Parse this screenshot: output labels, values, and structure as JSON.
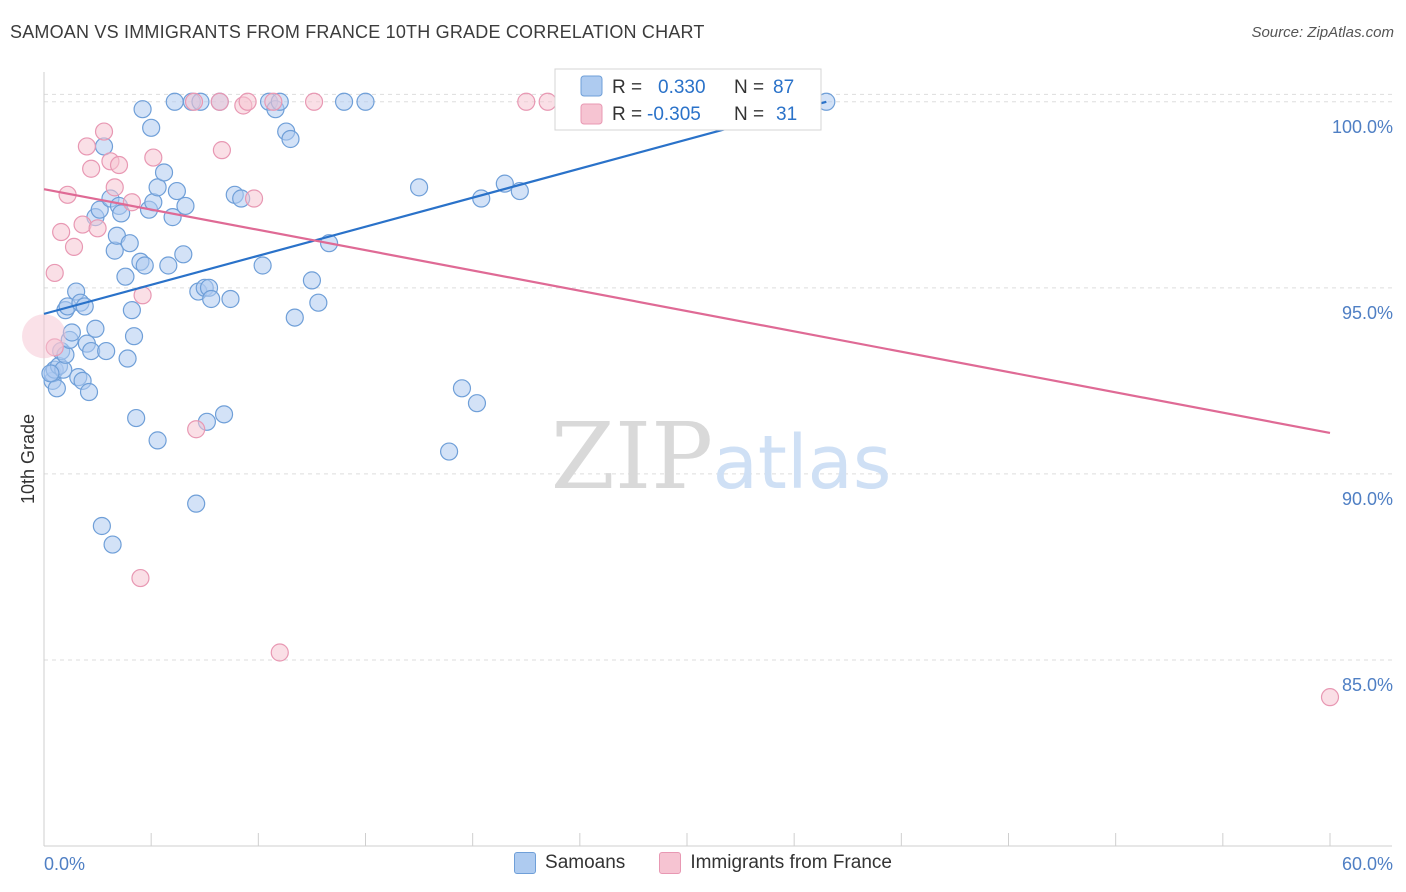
{
  "header": {
    "title": "SAMOAN VS IMMIGRANTS FROM FRANCE 10TH GRADE CORRELATION CHART",
    "source": "Source: ZipAtlas.com"
  },
  "watermark": {
    "zip": "ZIP",
    "atlas": "atlas"
  },
  "colors": {
    "blue_fill": "#aecbf0",
    "blue_stroke": "#6f9fd8",
    "blue_line": "#2a72c9",
    "pink_fill": "#f6c4d2",
    "pink_stroke": "#e898b3",
    "pink_line": "#df6a95",
    "axis_text": "#4f7fc4",
    "grid": "#dddddd"
  },
  "chart_data": {
    "type": "scatter",
    "title": "SAMOAN VS IMMIGRANTS FROM FRANCE 10TH GRADE CORRELATION CHART",
    "xlabel": "",
    "ylabel": "10th Grade",
    "xlim": [
      0,
      60
    ],
    "ylim": [
      80.0,
      100.8
    ],
    "x_tick_labels": [
      "0.0%",
      "60.0%"
    ],
    "y_ticks": [
      85,
      90,
      95,
      100
    ],
    "y_tick_labels": [
      "85.0%",
      "90.0%",
      "95.0%",
      "100.0%"
    ],
    "grid": true,
    "legend_stats": [
      {
        "series": "Samoans",
        "r_label": "R =",
        "r_value": "0.330",
        "n_label": "N =",
        "n_value": "87"
      },
      {
        "series": "Immigrants from France",
        "r_label": "R =",
        "r_value": "-0.305",
        "n_label": "N =",
        "n_value": "31"
      }
    ],
    "series": [
      {
        "name": "Samoans",
        "color": "#aecbf0",
        "trend": {
          "x": [
            0,
            36.5
          ],
          "y": [
            94.3,
            100.0
          ]
        },
        "points": [
          [
            0.4,
            92.5
          ],
          [
            0.4,
            92.7
          ],
          [
            0.5,
            92.8
          ],
          [
            0.6,
            92.3
          ],
          [
            0.7,
            92.9
          ],
          [
            0.8,
            93.3
          ],
          [
            0.9,
            92.8
          ],
          [
            1.0,
            94.4
          ],
          [
            1.0,
            93.2
          ],
          [
            1.1,
            94.5
          ],
          [
            1.2,
            93.6
          ],
          [
            1.3,
            93.8
          ],
          [
            1.5,
            94.9
          ],
          [
            1.6,
            92.6
          ],
          [
            1.7,
            94.6
          ],
          [
            1.8,
            92.5
          ],
          [
            1.9,
            94.5
          ],
          [
            2.0,
            93.5
          ],
          [
            2.1,
            92.2
          ],
          [
            2.2,
            93.3
          ],
          [
            2.4,
            96.9
          ],
          [
            2.4,
            93.9
          ],
          [
            2.6,
            97.1
          ],
          [
            2.7,
            88.6
          ],
          [
            2.8,
            98.8
          ],
          [
            2.9,
            93.3
          ],
          [
            3.1,
            97.4
          ],
          [
            3.2,
            88.1
          ],
          [
            3.3,
            96.0
          ],
          [
            3.4,
            96.4
          ],
          [
            3.5,
            97.2
          ],
          [
            3.6,
            97.0
          ],
          [
            3.8,
            95.3
          ],
          [
            3.9,
            93.1
          ],
          [
            4.0,
            96.2
          ],
          [
            4.1,
            94.4
          ],
          [
            4.2,
            93.7
          ],
          [
            4.3,
            91.5
          ],
          [
            4.5,
            95.7
          ],
          [
            4.6,
            99.8
          ],
          [
            4.7,
            95.6
          ],
          [
            4.9,
            97.1
          ],
          [
            5.0,
            99.3
          ],
          [
            5.1,
            97.3
          ],
          [
            5.3,
            97.7
          ],
          [
            5.3,
            90.9
          ],
          [
            5.6,
            98.1
          ],
          [
            5.8,
            95.6
          ],
          [
            6.0,
            96.9
          ],
          [
            6.1,
            100.0
          ],
          [
            6.2,
            97.6
          ],
          [
            6.5,
            95.9
          ],
          [
            6.6,
            97.2
          ],
          [
            6.9,
            100.0
          ],
          [
            7.1,
            89.2
          ],
          [
            7.2,
            94.9
          ],
          [
            7.3,
            100.0
          ],
          [
            7.5,
            95.0
          ],
          [
            7.6,
            91.4
          ],
          [
            7.7,
            95.0
          ],
          [
            7.8,
            94.7
          ],
          [
            8.2,
            100.0
          ],
          [
            8.4,
            91.6
          ],
          [
            8.7,
            94.7
          ],
          [
            8.9,
            97.5
          ],
          [
            9.2,
            97.4
          ],
          [
            10.2,
            95.6
          ],
          [
            10.5,
            100.0
          ],
          [
            10.8,
            99.8
          ],
          [
            11.0,
            100.0
          ],
          [
            11.3,
            99.2
          ],
          [
            11.5,
            99.0
          ],
          [
            11.7,
            94.2
          ],
          [
            12.5,
            95.2
          ],
          [
            12.8,
            94.6
          ],
          [
            13.3,
            96.2
          ],
          [
            14.0,
            100.0
          ],
          [
            15.0,
            100.0
          ],
          [
            17.5,
            97.7
          ],
          [
            18.9,
            90.6
          ],
          [
            19.5,
            92.3
          ],
          [
            20.2,
            91.9
          ],
          [
            20.4,
            97.4
          ],
          [
            21.5,
            97.8
          ],
          [
            22.2,
            97.6
          ],
          [
            36.5,
            100.0
          ],
          [
            0.3,
            92.7
          ]
        ]
      },
      {
        "name": "Immigrants from France",
        "color": "#f6c4d2",
        "trend": {
          "x": [
            0,
            60
          ],
          "y": [
            97.65,
            91.1
          ]
        },
        "points": [
          [
            0.5,
            93.4
          ],
          [
            0.5,
            95.4
          ],
          [
            0.8,
            96.5
          ],
          [
            1.1,
            97.5
          ],
          [
            1.4,
            96.1
          ],
          [
            1.8,
            96.7
          ],
          [
            2.0,
            98.8
          ],
          [
            2.2,
            98.2
          ],
          [
            2.5,
            96.6
          ],
          [
            2.8,
            99.2
          ],
          [
            3.1,
            98.4
          ],
          [
            3.3,
            97.7
          ],
          [
            3.5,
            98.3
          ],
          [
            4.1,
            97.3
          ],
          [
            4.6,
            94.8
          ],
          [
            4.5,
            87.2
          ],
          [
            5.1,
            98.5
          ],
          [
            7.0,
            100.0
          ],
          [
            7.1,
            91.2
          ],
          [
            8.2,
            100.0
          ],
          [
            8.3,
            98.7
          ],
          [
            9.3,
            99.9
          ],
          [
            9.5,
            100.0
          ],
          [
            9.8,
            97.4
          ],
          [
            10.7,
            100.0
          ],
          [
            11.0,
            85.2
          ],
          [
            12.6,
            100.0
          ],
          [
            22.5,
            100.0
          ],
          [
            23.5,
            100.0
          ],
          [
            31.8,
            100.0
          ],
          [
            60.0,
            84.0
          ]
        ]
      }
    ]
  }
}
